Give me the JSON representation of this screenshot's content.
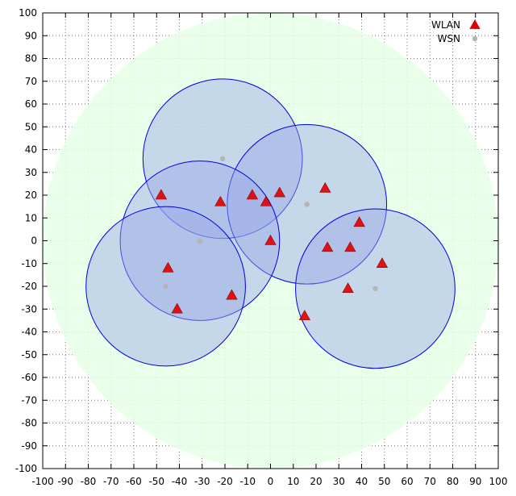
{
  "chart_data": {
    "type": "scatter",
    "title": "",
    "xlabel": "",
    "ylabel": "",
    "xlim": [
      -100,
      100
    ],
    "ylim": [
      -100,
      100
    ],
    "xticks": [
      -100,
      -90,
      -80,
      -70,
      -60,
      -50,
      -40,
      -30,
      -20,
      -10,
      0,
      10,
      20,
      30,
      40,
      50,
      60,
      70,
      80,
      90,
      100
    ],
    "yticks": [
      -100,
      -90,
      -80,
      -70,
      -60,
      -50,
      -40,
      -30,
      -20,
      -10,
      0,
      10,
      20,
      30,
      40,
      50,
      60,
      70,
      80,
      90,
      100
    ],
    "grid": true,
    "legend_position": "top-right",
    "area_circle": {
      "cx": 0,
      "cy": 0,
      "r": 100,
      "color": "#e6ffe6"
    },
    "coverage_circles": {
      "radius": 35,
      "fill": "#9aa9e8",
      "stroke": "#0000dd",
      "centers": [
        {
          "x": -21,
          "y": 36
        },
        {
          "x": 16,
          "y": 16
        },
        {
          "x": -31,
          "y": 0
        },
        {
          "x": -46,
          "y": -20
        },
        {
          "x": 46,
          "y": -21
        }
      ]
    },
    "series": [
      {
        "name": "WLAN",
        "marker": "triangle",
        "color": "#e00000",
        "points": [
          {
            "x": -48,
            "y": 20
          },
          {
            "x": -22,
            "y": 17
          },
          {
            "x": -8,
            "y": 20
          },
          {
            "x": -2,
            "y": 17
          },
          {
            "x": 4,
            "y": 21
          },
          {
            "x": 24,
            "y": 23
          },
          {
            "x": 39,
            "y": 8
          },
          {
            "x": -45,
            "y": -12
          },
          {
            "x": 0,
            "y": 0
          },
          {
            "x": 25,
            "y": -3
          },
          {
            "x": 35,
            "y": -3
          },
          {
            "x": 49,
            "y": -10
          },
          {
            "x": 34,
            "y": -21
          },
          {
            "x": -17,
            "y": -24
          },
          {
            "x": -41,
            "y": -30
          },
          {
            "x": 15,
            "y": -33
          }
        ]
      },
      {
        "name": "WSN",
        "marker": "circle",
        "color": "#b4b4b4",
        "points": [
          {
            "x": -21,
            "y": 36
          },
          {
            "x": 16,
            "y": 16
          },
          {
            "x": -31,
            "y": 0
          },
          {
            "x": -46,
            "y": -20
          },
          {
            "x": 46,
            "y": -21
          }
        ]
      }
    ]
  }
}
